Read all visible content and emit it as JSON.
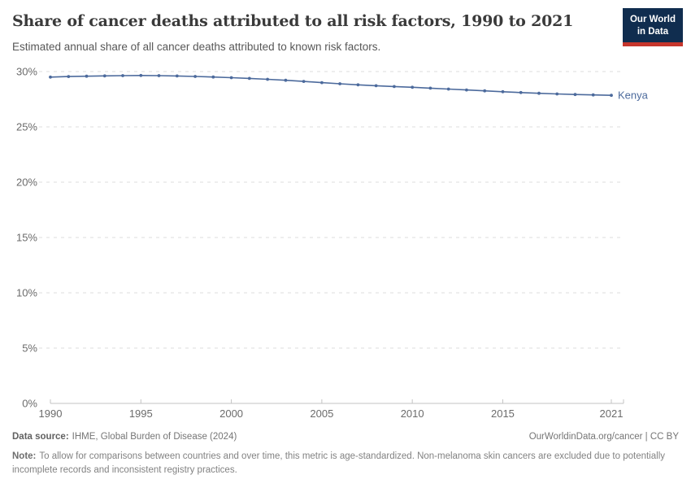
{
  "header": {
    "title": "Share of cancer deaths attributed to all risk factors, 1990 to 2021",
    "subtitle": "Estimated annual share of all cancer deaths attributed to known risk factors."
  },
  "logo": {
    "line1": "Our World",
    "line2": "in Data",
    "bg_color": "#102D4F",
    "accent_color": "#C6362C"
  },
  "chart_data": {
    "type": "line",
    "title": "Share of cancer deaths attributed to all risk factors, 1990 to 2021",
    "x": [
      1990,
      1991,
      1992,
      1993,
      1994,
      1995,
      1996,
      1997,
      1998,
      1999,
      2000,
      2001,
      2002,
      2003,
      2004,
      2005,
      2006,
      2007,
      2008,
      2009,
      2010,
      2011,
      2012,
      2013,
      2014,
      2015,
      2016,
      2017,
      2018,
      2019,
      2020,
      2021
    ],
    "series": [
      {
        "name": "Kenya",
        "color": "#4C6A9C",
        "values": [
          29.5,
          29.55,
          29.58,
          29.61,
          29.63,
          29.65,
          29.63,
          29.6,
          29.56,
          29.51,
          29.45,
          29.38,
          29.3,
          29.21,
          29.11,
          29.0,
          28.9,
          28.8,
          28.72,
          28.65,
          28.58,
          28.5,
          28.42,
          28.34,
          28.26,
          28.18,
          28.1,
          28.04,
          27.98,
          27.93,
          27.89,
          27.85
        ]
      }
    ],
    "ylim": [
      0,
      30
    ],
    "yticks": [
      0,
      5,
      10,
      15,
      20,
      25,
      30
    ],
    "ytick_suffix": "%",
    "xticks": [
      1990,
      1995,
      2000,
      2005,
      2010,
      2015,
      2021
    ],
    "xlabel": "",
    "ylabel": "",
    "grid": "horizontal-dashed",
    "legend": "end-of-line-label",
    "grid_color": "#DCDCDC",
    "axis_color": "#C3C3C3",
    "tick_label_color": "#6B6B6B"
  },
  "footer": {
    "data_source_label": "Data source:",
    "data_source_value": "IHME, Global Burden of Disease (2024)",
    "link_text": "OurWorldinData.org/cancer | CC BY",
    "note_label": "Note:",
    "note_text": "To allow for comparisons between countries and over time, this metric is age-standardized. Non-melanoma skin cancers are excluded due to potentially incomplete records and inconsistent registry practices."
  }
}
